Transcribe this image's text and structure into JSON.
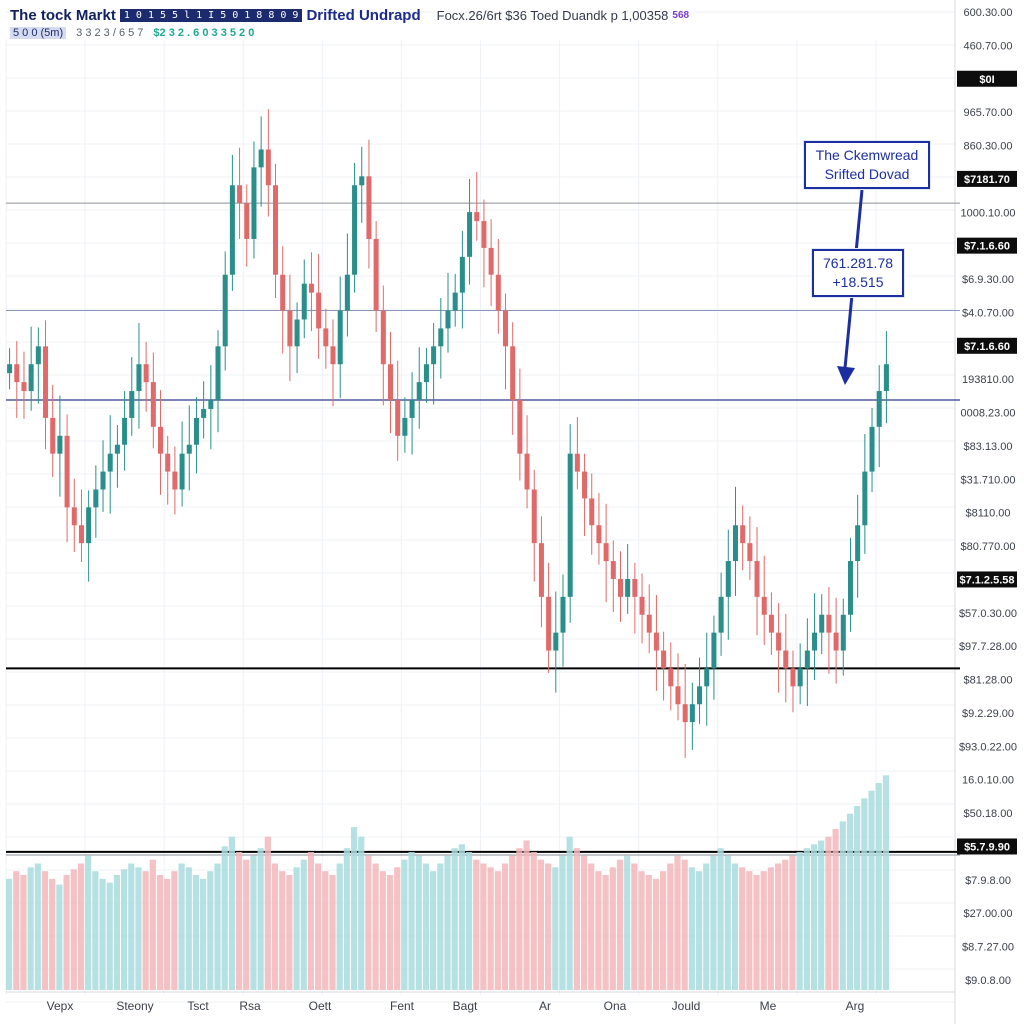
{
  "header": {
    "title": "The tock Markt",
    "symbol_badge": "1 0 1 5 5 l  1 I 5  0 1 8 8 0 9",
    "subtitle": "Drifted Undrapd",
    "quote": "Focx.26/6rt $36 Toed Duandk p 1,00358",
    "quote_badge": "568",
    "timeframe": "5 0 0 (5m)",
    "stats": "3 3 2 3 / 6 5 7",
    "change": "$2 3 2 . 6 0 3 3 5 2 0"
  },
  "colors": {
    "up": "#2a8f8a",
    "down": "#e06a6a",
    "vol_up": "#a9dcde",
    "vol_down": "#f2b6ba",
    "accent": "#1c2fa0",
    "grid": "#eef1f6"
  },
  "annotations": [
    {
      "lines": [
        "The Ckemwread",
        "Srifted Dovad"
      ]
    },
    {
      "lines": [
        "761.281.78",
        "+18.515"
      ]
    }
  ],
  "chart_data": {
    "type": "candlestick",
    "title": "The tock Markt",
    "subtitle": "Drifted Undrapd",
    "x_tick_labels": [
      "Vepx",
      "Steony",
      "Tsct",
      "Rsa",
      "Oett",
      "Fent",
      "Bagt",
      "Ar",
      "Ona",
      "Jould",
      "Me",
      "Arg"
    ],
    "price_axis_labels": [
      "600.30.00",
      "460.70.00",
      "$0I",
      "965.70.00",
      "860.30.00",
      "$7181.70",
      "1000.10.00",
      "$7.1.6.60",
      "$6.9.30.00",
      "$4.0.70.00",
      "$7.1.6.60",
      "193810.00",
      "0008.23.00",
      "$83.13.00",
      "$31.710.00",
      "$8110.00",
      "$80.770.00",
      "$7.1.2.5.58",
      "$57.0.30.00",
      "$97.7.28.00",
      "$81.28.00",
      "$9.2.29.00",
      "$93.0.22.00",
      "16.0.10.00",
      "$50.18.00",
      "$5.7.9.90",
      "$7.9.8.00",
      "$27.00.00",
      "$8.7.27.00",
      "$9.0.8.00"
    ],
    "price_axis_highlighted": [
      "$0I",
      "$7181.70",
      "$7.1.6.60",
      "$7.1.6.60",
      "$7.1.2.5.58",
      "$5.7.9.90"
    ],
    "price_range": [
      940,
      1700
    ],
    "horizontal_levels": [
      1540,
      1420,
      1320,
      1020,
      815
    ],
    "closes": [
      1360,
      1340,
      1330,
      1360,
      1380,
      1300,
      1260,
      1280,
      1200,
      1180,
      1160,
      1200,
      1220,
      1240,
      1260,
      1270,
      1300,
      1330,
      1360,
      1340,
      1290,
      1260,
      1240,
      1220,
      1260,
      1270,
      1300,
      1310,
      1320,
      1380,
      1460,
      1560,
      1540,
      1500,
      1580,
      1600,
      1560,
      1460,
      1420,
      1380,
      1410,
      1450,
      1440,
      1400,
      1380,
      1360,
      1420,
      1460,
      1560,
      1570,
      1500,
      1420,
      1360,
      1320,
      1280,
      1300,
      1320,
      1340,
      1360,
      1380,
      1400,
      1420,
      1440,
      1480,
      1530,
      1520,
      1490,
      1460,
      1420,
      1380,
      1320,
      1260,
      1220,
      1160,
      1100,
      1040,
      1060,
      1100,
      1260,
      1240,
      1210,
      1180,
      1160,
      1140,
      1120,
      1100,
      1120,
      1100,
      1080,
      1060,
      1040,
      1020,
      1000,
      980,
      960,
      980,
      1000,
      1020,
      1060,
      1100,
      1140,
      1180,
      1160,
      1140,
      1100,
      1080,
      1060,
      1040,
      1020,
      1000,
      1020,
      1040,
      1060,
      1080,
      1060,
      1040,
      1080,
      1140,
      1180,
      1240,
      1290,
      1330,
      1360
    ],
    "volumes": [
      58,
      62,
      60,
      64,
      66,
      62,
      58,
      55,
      60,
      63,
      66,
      70,
      62,
      58,
      56,
      60,
      63,
      66,
      64,
      62,
      68,
      60,
      58,
      62,
      66,
      64,
      60,
      58,
      62,
      66,
      75,
      80,
      72,
      68,
      70,
      74,
      80,
      66,
      62,
      60,
      64,
      68,
      72,
      66,
      62,
      60,
      66,
      74,
      85,
      80,
      70,
      66,
      62,
      60,
      64,
      68,
      72,
      70,
      66,
      62,
      66,
      70,
      74,
      76,
      72,
      68,
      66,
      64,
      62,
      66,
      70,
      74,
      78,
      72,
      68,
      66,
      64,
      70,
      80,
      74,
      70,
      66,
      62,
      60,
      64,
      68,
      70,
      66,
      62,
      60,
      58,
      62,
      66,
      70,
      68,
      64,
      62,
      66,
      70,
      74,
      70,
      66,
      64,
      62,
      60,
      62,
      64,
      66,
      68,
      70,
      72,
      74,
      76,
      78,
      80,
      84,
      88,
      92,
      96,
      100,
      104,
      108,
      112
    ],
    "volume_max": 120
  }
}
